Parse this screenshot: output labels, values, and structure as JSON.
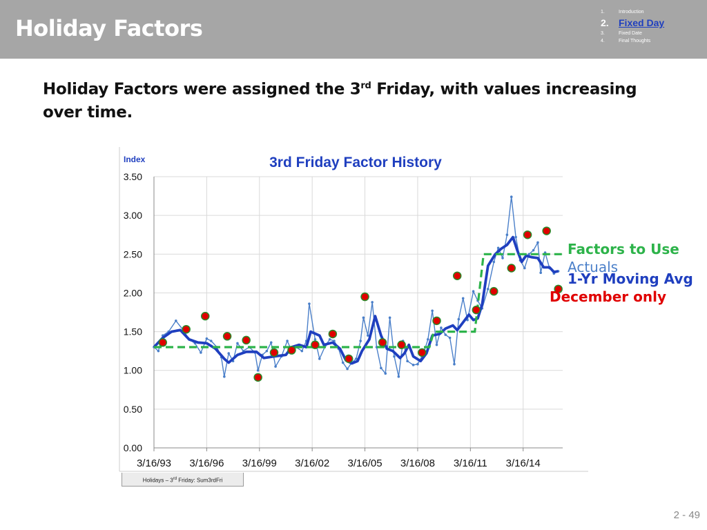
{
  "header": {
    "title": "Holiday Factors",
    "nav": [
      {
        "num": "1.",
        "label": "Introduction",
        "active": false
      },
      {
        "num": "2.",
        "label": "Fixed Day",
        "active": true
      },
      {
        "num": "3.",
        "label": "Fixed Date",
        "active": false
      },
      {
        "num": "4.",
        "label": "Final Thoughts",
        "active": false
      }
    ]
  },
  "subtitle": {
    "pre": "Holiday Factors were assigned the 3",
    "sup": "rd",
    "post": " Friday, with values increasing over time."
  },
  "sheet_tab": {
    "pre": "Holidays – 3",
    "sup": "rd",
    "post": " Friday:  Sum3rdFri"
  },
  "page_number": "2 -  49",
  "colors": {
    "factors": "#2db34a",
    "actuals": "#4a7fc9",
    "moving_avg": "#1f3fbf",
    "december": "#e00000"
  },
  "chart_data": {
    "type": "line",
    "title": "3rd Friday Factor History",
    "ylabel": "Index",
    "xlabel": "",
    "ylim": [
      0,
      3.5
    ],
    "y_ticks": [
      "0.00",
      "0.50",
      "1.00",
      "1.50",
      "2.00",
      "2.50",
      "3.00",
      "3.50"
    ],
    "x_ticks": [
      "3/16/93",
      "3/16/96",
      "3/16/99",
      "3/16/02",
      "3/16/05",
      "3/16/08",
      "3/16/11",
      "3/16/14"
    ],
    "x_range": [
      "1993-03",
      "2016-06"
    ],
    "grid": true,
    "legend_position": "right",
    "series": [
      {
        "name": "Factors to Use",
        "style": "dashed",
        "points": [
          [
            "1993-03",
            1.3
          ],
          [
            "2008-11",
            1.3
          ],
          [
            "2009-02",
            1.5
          ],
          [
            "2011-06",
            1.5
          ],
          [
            "2011-12",
            2.5
          ],
          [
            "2016-06",
            2.5
          ]
        ]
      },
      {
        "name": "Actuals",
        "style": "thin",
        "points": [
          [
            "1993-03",
            1.3
          ],
          [
            "1993-06",
            1.25
          ],
          [
            "1993-09",
            1.45
          ],
          [
            "1994-01",
            1.5
          ],
          [
            "1994-06",
            1.64
          ],
          [
            "1994-11",
            1.52
          ],
          [
            "1995-03",
            1.4
          ],
          [
            "1995-07",
            1.35
          ],
          [
            "1995-11",
            1.23
          ],
          [
            "1996-03",
            1.41
          ],
          [
            "1996-06",
            1.38
          ],
          [
            "1996-10",
            1.3
          ],
          [
            "1997-01",
            1.17
          ],
          [
            "1997-03",
            0.92
          ],
          [
            "1997-06",
            1.22
          ],
          [
            "1997-09",
            1.12
          ],
          [
            "1997-12",
            1.35
          ],
          [
            "1998-04",
            1.25
          ],
          [
            "1998-08",
            1.3
          ],
          [
            "1998-12",
            1.23
          ],
          [
            "1999-02",
            1.0
          ],
          [
            "1999-05",
            1.2
          ],
          [
            "1999-08",
            1.25
          ],
          [
            "1999-11",
            1.36
          ],
          [
            "2000-02",
            1.05
          ],
          [
            "2000-06",
            1.18
          ],
          [
            "2000-10",
            1.38
          ],
          [
            "2001-01",
            1.25
          ],
          [
            "2001-04",
            1.3
          ],
          [
            "2001-08",
            1.25
          ],
          [
            "2001-11",
            1.38
          ],
          [
            "2002-01",
            1.86
          ],
          [
            "2002-05",
            1.4
          ],
          [
            "2002-08",
            1.15
          ],
          [
            "2002-12",
            1.32
          ],
          [
            "2003-03",
            1.4
          ],
          [
            "2003-06",
            1.38
          ],
          [
            "2003-09",
            1.28
          ],
          [
            "2003-12",
            1.1
          ],
          [
            "2004-03",
            1.02
          ],
          [
            "2004-06",
            1.1
          ],
          [
            "2004-09",
            1.15
          ],
          [
            "2004-12",
            1.38
          ],
          [
            "2005-02",
            1.68
          ],
          [
            "2005-05",
            1.45
          ],
          [
            "2005-08",
            1.88
          ],
          [
            "2005-11",
            1.3
          ],
          [
            "2006-02",
            1.03
          ],
          [
            "2006-05",
            0.96
          ],
          [
            "2006-08",
            1.68
          ],
          [
            "2006-11",
            1.18
          ],
          [
            "2007-02",
            0.92
          ],
          [
            "2007-05",
            1.38
          ],
          [
            "2007-08",
            1.12
          ],
          [
            "2007-12",
            1.07
          ],
          [
            "2008-03",
            1.08
          ],
          [
            "2008-07",
            1.22
          ],
          [
            "2008-10",
            1.4
          ],
          [
            "2009-01",
            1.77
          ],
          [
            "2009-04",
            1.33
          ],
          [
            "2009-07",
            1.55
          ],
          [
            "2009-10",
            1.46
          ],
          [
            "2010-01",
            1.42
          ],
          [
            "2010-04",
            1.08
          ],
          [
            "2010-07",
            1.66
          ],
          [
            "2010-10",
            1.93
          ],
          [
            "2011-01",
            1.65
          ],
          [
            "2011-05",
            2.02
          ],
          [
            "2011-08",
            1.9
          ],
          [
            "2011-11",
            1.8
          ],
          [
            "2012-03",
            2.05
          ],
          [
            "2012-07",
            2.4
          ],
          [
            "2012-10",
            2.58
          ],
          [
            "2013-01",
            2.45
          ],
          [
            "2013-04",
            2.75
          ],
          [
            "2013-07",
            3.24
          ],
          [
            "2013-10",
            2.72
          ],
          [
            "2014-01",
            2.42
          ],
          [
            "2014-04",
            2.32
          ],
          [
            "2014-07",
            2.5
          ],
          [
            "2014-10",
            2.55
          ],
          [
            "2015-01",
            2.65
          ],
          [
            "2015-03",
            2.26
          ],
          [
            "2015-06",
            2.52
          ],
          [
            "2015-09",
            2.32
          ],
          [
            "2015-12",
            2.25
          ],
          [
            "2016-03",
            2.28
          ]
        ]
      },
      {
        "name": "1-Yr Moving Avg",
        "style": "thick",
        "points": [
          [
            "1993-03",
            1.3
          ],
          [
            "1993-09",
            1.42
          ],
          [
            "1994-03",
            1.5
          ],
          [
            "1994-09",
            1.52
          ],
          [
            "1995-03",
            1.4
          ],
          [
            "1995-09",
            1.36
          ],
          [
            "1996-03",
            1.35
          ],
          [
            "1996-09",
            1.28
          ],
          [
            "1997-03",
            1.15
          ],
          [
            "1997-06",
            1.1
          ],
          [
            "1997-12",
            1.2
          ],
          [
            "1998-06",
            1.24
          ],
          [
            "1999-01",
            1.24
          ],
          [
            "1999-06",
            1.16
          ],
          [
            "2000-01",
            1.18
          ],
          [
            "2000-09",
            1.2
          ],
          [
            "2001-01",
            1.3
          ],
          [
            "2001-06",
            1.33
          ],
          [
            "2001-11",
            1.3
          ],
          [
            "2002-02",
            1.5
          ],
          [
            "2002-08",
            1.45
          ],
          [
            "2002-11",
            1.33
          ],
          [
            "2003-05",
            1.36
          ],
          [
            "2003-10",
            1.28
          ],
          [
            "2004-02",
            1.13
          ],
          [
            "2004-06",
            1.09
          ],
          [
            "2004-10",
            1.12
          ],
          [
            "2005-01",
            1.25
          ],
          [
            "2005-06",
            1.4
          ],
          [
            "2005-10",
            1.7
          ],
          [
            "2006-02",
            1.45
          ],
          [
            "2006-06",
            1.28
          ],
          [
            "2006-10",
            1.25
          ],
          [
            "2007-03",
            1.16
          ],
          [
            "2007-06",
            1.22
          ],
          [
            "2007-09",
            1.33
          ],
          [
            "2007-12",
            1.18
          ],
          [
            "2008-05",
            1.12
          ],
          [
            "2008-09",
            1.22
          ],
          [
            "2009-01",
            1.45
          ],
          [
            "2009-06",
            1.47
          ],
          [
            "2009-10",
            1.54
          ],
          [
            "2010-03",
            1.58
          ],
          [
            "2010-06",
            1.52
          ],
          [
            "2010-10",
            1.62
          ],
          [
            "2011-02",
            1.72
          ],
          [
            "2011-05",
            1.65
          ],
          [
            "2011-08",
            1.67
          ],
          [
            "2011-11",
            1.85
          ],
          [
            "2012-03",
            2.35
          ],
          [
            "2012-08",
            2.5
          ],
          [
            "2012-12",
            2.57
          ],
          [
            "2013-04",
            2.62
          ],
          [
            "2013-08",
            2.72
          ],
          [
            "2013-11",
            2.55
          ],
          [
            "2014-02",
            2.4
          ],
          [
            "2014-05",
            2.48
          ],
          [
            "2014-09",
            2.46
          ],
          [
            "2015-01",
            2.45
          ],
          [
            "2015-05",
            2.33
          ],
          [
            "2015-09",
            2.33
          ],
          [
            "2015-12",
            2.27
          ],
          [
            "2016-03",
            2.28
          ]
        ]
      },
      {
        "name": "December only",
        "style": "markers",
        "points": [
          [
            "1993-09",
            1.36
          ],
          [
            "1995-01",
            1.53
          ],
          [
            "1996-02",
            1.7
          ],
          [
            "1997-05",
            1.44
          ],
          [
            "1998-06",
            1.39
          ],
          [
            "1999-02",
            0.91
          ],
          [
            "2000-01",
            1.23
          ],
          [
            "2001-01",
            1.26
          ],
          [
            "2002-05",
            1.33
          ],
          [
            "2003-05",
            1.47
          ],
          [
            "2004-04",
            1.15
          ],
          [
            "2005-03",
            1.95
          ],
          [
            "2006-03",
            1.36
          ],
          [
            "2007-04",
            1.33
          ],
          [
            "2008-06",
            1.23
          ],
          [
            "2009-04",
            1.64
          ],
          [
            "2010-06",
            2.22
          ],
          [
            "2011-07",
            1.78
          ],
          [
            "2012-07",
            2.02
          ],
          [
            "2013-07",
            2.32
          ],
          [
            "2014-06",
            2.75
          ],
          [
            "2015-07",
            2.8
          ],
          [
            "2016-03",
            2.05
          ]
        ]
      }
    ]
  }
}
